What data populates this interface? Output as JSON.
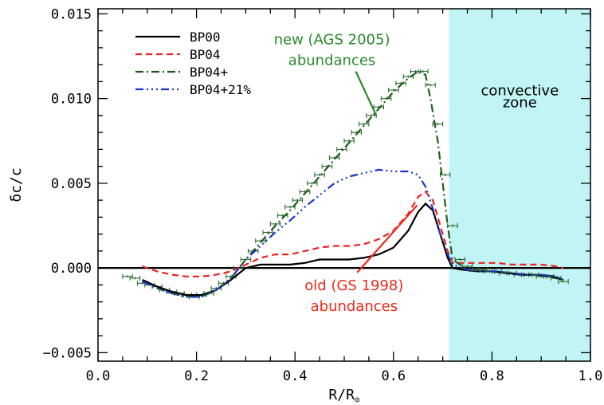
{
  "chart_data": {
    "type": "line",
    "xlabel": "R/R",
    "xlabel_sub": "⊙",
    "ylabel": "δc/c",
    "xlim": [
      0.0,
      1.0
    ],
    "ylim": [
      -0.0055,
      0.0153
    ],
    "xticks": [
      0.0,
      0.2,
      0.4,
      0.6,
      0.8,
      1.0
    ],
    "xtick_labels": [
      "0.0",
      "0.2",
      "0.4",
      "0.6",
      "0.8",
      "1.0"
    ],
    "yticks": [
      -0.005,
      0.0,
      0.005,
      0.01,
      0.015
    ],
    "ytick_labels": [
      "−0.005",
      "0.000",
      "0.005",
      "0.010",
      "0.015"
    ],
    "grid": false,
    "legend_position": "top-left",
    "zero_line": true,
    "convective_zone": {
      "x_start": 0.713,
      "x_end": 1.0,
      "color": "#c0f4f5",
      "label_line1": "convective",
      "label_line2": "zone"
    },
    "series": [
      {
        "name": "BP00",
        "color": "#000000",
        "dash": "solid",
        "x": [
          0.09,
          0.12,
          0.15,
          0.18,
          0.21,
          0.24,
          0.27,
          0.3,
          0.33,
          0.36,
          0.39,
          0.42,
          0.45,
          0.48,
          0.51,
          0.54,
          0.57,
          0.6,
          0.63,
          0.65,
          0.665,
          0.68,
          0.695,
          0.71,
          0.72,
          0.74,
          0.77,
          0.8,
          0.83,
          0.86,
          0.89,
          0.92,
          0.945
        ],
        "y": [
          -0.0007,
          -0.0011,
          -0.0014,
          -0.0016,
          -0.0016,
          -0.0013,
          -0.0007,
          0.0,
          0.0002,
          0.0002,
          0.0002,
          0.0003,
          0.0005,
          0.0005,
          0.0005,
          0.0006,
          0.0008,
          0.0012,
          0.0022,
          0.0033,
          0.0038,
          0.0034,
          0.002,
          0.0006,
          0.0,
          -0.0001,
          -0.0002,
          -0.0002,
          -0.0003,
          -0.0004,
          -0.0004,
          -0.0005,
          -0.0007
        ]
      },
      {
        "name": "BP04",
        "color": "#ee2222",
        "dash": "8,5",
        "x": [
          0.09,
          0.12,
          0.15,
          0.18,
          0.21,
          0.24,
          0.27,
          0.3,
          0.33,
          0.36,
          0.39,
          0.42,
          0.45,
          0.48,
          0.51,
          0.54,
          0.57,
          0.6,
          0.63,
          0.65,
          0.665,
          0.68,
          0.695,
          0.71,
          0.72,
          0.75,
          0.78,
          0.81,
          0.84,
          0.87,
          0.9,
          0.93,
          0.945
        ],
        "y": [
          0.0001,
          -0.0002,
          -0.0004,
          -0.0005,
          -0.0005,
          -0.0004,
          -0.0002,
          0.0002,
          0.0006,
          0.0008,
          0.0008,
          0.001,
          0.0012,
          0.0013,
          0.0013,
          0.0014,
          0.0017,
          0.0022,
          0.0032,
          0.0042,
          0.0045,
          0.004,
          0.0025,
          0.001,
          0.0003,
          0.0003,
          0.0003,
          0.0003,
          0.0002,
          0.0002,
          0.0002,
          0.0001,
          0.0
        ]
      },
      {
        "name": "BP04+",
        "color": "#1e5c1e",
        "dash": "10,4,2,4",
        "x": [
          0.09,
          0.12,
          0.15,
          0.18,
          0.21,
          0.24,
          0.27,
          0.3,
          0.33,
          0.36,
          0.39,
          0.42,
          0.45,
          0.48,
          0.51,
          0.54,
          0.57,
          0.6,
          0.63,
          0.65,
          0.665,
          0.675,
          0.69,
          0.7,
          0.71,
          0.72,
          0.75,
          0.78,
          0.81,
          0.84,
          0.87,
          0.9,
          0.93,
          0.945
        ],
        "y": [
          -0.0008,
          -0.0012,
          -0.0015,
          -0.0017,
          -0.0017,
          -0.0013,
          -0.0006,
          0.0005,
          0.0015,
          0.0025,
          0.0034,
          0.0044,
          0.0054,
          0.0064,
          0.0074,
          0.0084,
          0.0094,
          0.0104,
          0.0112,
          0.0116,
          0.0114,
          0.01,
          0.0075,
          0.005,
          0.0025,
          0.0005,
          -0.0001,
          -0.0002,
          -0.0002,
          -0.0003,
          -0.0004,
          -0.0004,
          -0.0005,
          -0.0007
        ]
      },
      {
        "name": "BP04+21%",
        "color": "#1a33cc",
        "dash": "10,4,2,4,2,4,2,4",
        "x": [
          0.09,
          0.12,
          0.15,
          0.18,
          0.21,
          0.24,
          0.27,
          0.3,
          0.33,
          0.36,
          0.39,
          0.42,
          0.45,
          0.48,
          0.51,
          0.54,
          0.57,
          0.6,
          0.63,
          0.65,
          0.665,
          0.68,
          0.695,
          0.71,
          0.72,
          0.75,
          0.78,
          0.81,
          0.84,
          0.87,
          0.9,
          0.93,
          0.945
        ],
        "y": [
          -0.0008,
          -0.0012,
          -0.0015,
          -0.0017,
          -0.0017,
          -0.0013,
          -0.0006,
          0.0005,
          0.0013,
          0.0021,
          0.0028,
          0.0036,
          0.0043,
          0.005,
          0.0054,
          0.0056,
          0.0058,
          0.0057,
          0.0057,
          0.0055,
          0.0048,
          0.0035,
          0.002,
          0.0008,
          0.0002,
          -0.0001,
          -0.0002,
          -0.0002,
          -0.0003,
          -0.0004,
          -0.0004,
          -0.0005,
          -0.0007
        ]
      }
    ],
    "helioseismic_points": {
      "color": "#2c6b2c",
      "x_err": 0.01,
      "y_err": 8e-05,
      "x": [
        0.06,
        0.075,
        0.09,
        0.105,
        0.12,
        0.135,
        0.15,
        0.165,
        0.18,
        0.195,
        0.21,
        0.225,
        0.24,
        0.255,
        0.27,
        0.285,
        0.3,
        0.315,
        0.33,
        0.345,
        0.36,
        0.375,
        0.39,
        0.405,
        0.42,
        0.435,
        0.45,
        0.465,
        0.48,
        0.495,
        0.51,
        0.525,
        0.54,
        0.555,
        0.57,
        0.585,
        0.6,
        0.615,
        0.63,
        0.645,
        0.66,
        0.675,
        0.69,
        0.705,
        0.72,
        0.735,
        0.75,
        0.765,
        0.78,
        0.795,
        0.81,
        0.825,
        0.84,
        0.855,
        0.87,
        0.885,
        0.9,
        0.915,
        0.93,
        0.945
      ],
      "y": [
        -0.0005,
        -0.0006,
        -0.0009,
        -0.001,
        -0.0011,
        -0.0013,
        -0.0014,
        -0.0015,
        -0.0016,
        -0.0017,
        -0.0016,
        -0.0015,
        -0.0012,
        -0.0009,
        -0.0005,
        0.0,
        0.0005,
        0.001,
        0.0016,
        0.0021,
        0.0026,
        0.0031,
        0.0036,
        0.004,
        0.0045,
        0.005,
        0.0055,
        0.006,
        0.0065,
        0.007,
        0.0075,
        0.008,
        0.0085,
        0.009,
        0.0095,
        0.01,
        0.0105,
        0.0109,
        0.0113,
        0.0116,
        0.0116,
        0.0108,
        0.0085,
        0.0055,
        0.0025,
        0.0005,
        0.0001,
        -0.0001,
        -0.0001,
        -0.0002,
        -0.0002,
        -0.0003,
        -0.0003,
        -0.0004,
        -0.0004,
        -0.0004,
        -0.0005,
        -0.0005,
        -0.0006,
        -0.0008
      ]
    },
    "annotations": [
      {
        "line1": "new (AGS 2005)",
        "line2": "abundances",
        "color": "#2a8a2a",
        "text_at": [
          0.475,
          0.0132
        ],
        "arrow_to": [
          0.565,
          0.009
        ]
      },
      {
        "line1": "old (GS 1998)",
        "line2": "abundances",
        "color": "#ee2a1a",
        "text_at": [
          0.52,
          -0.0013
        ],
        "arrow_to": [
          0.648,
          0.0037
        ]
      }
    ]
  }
}
